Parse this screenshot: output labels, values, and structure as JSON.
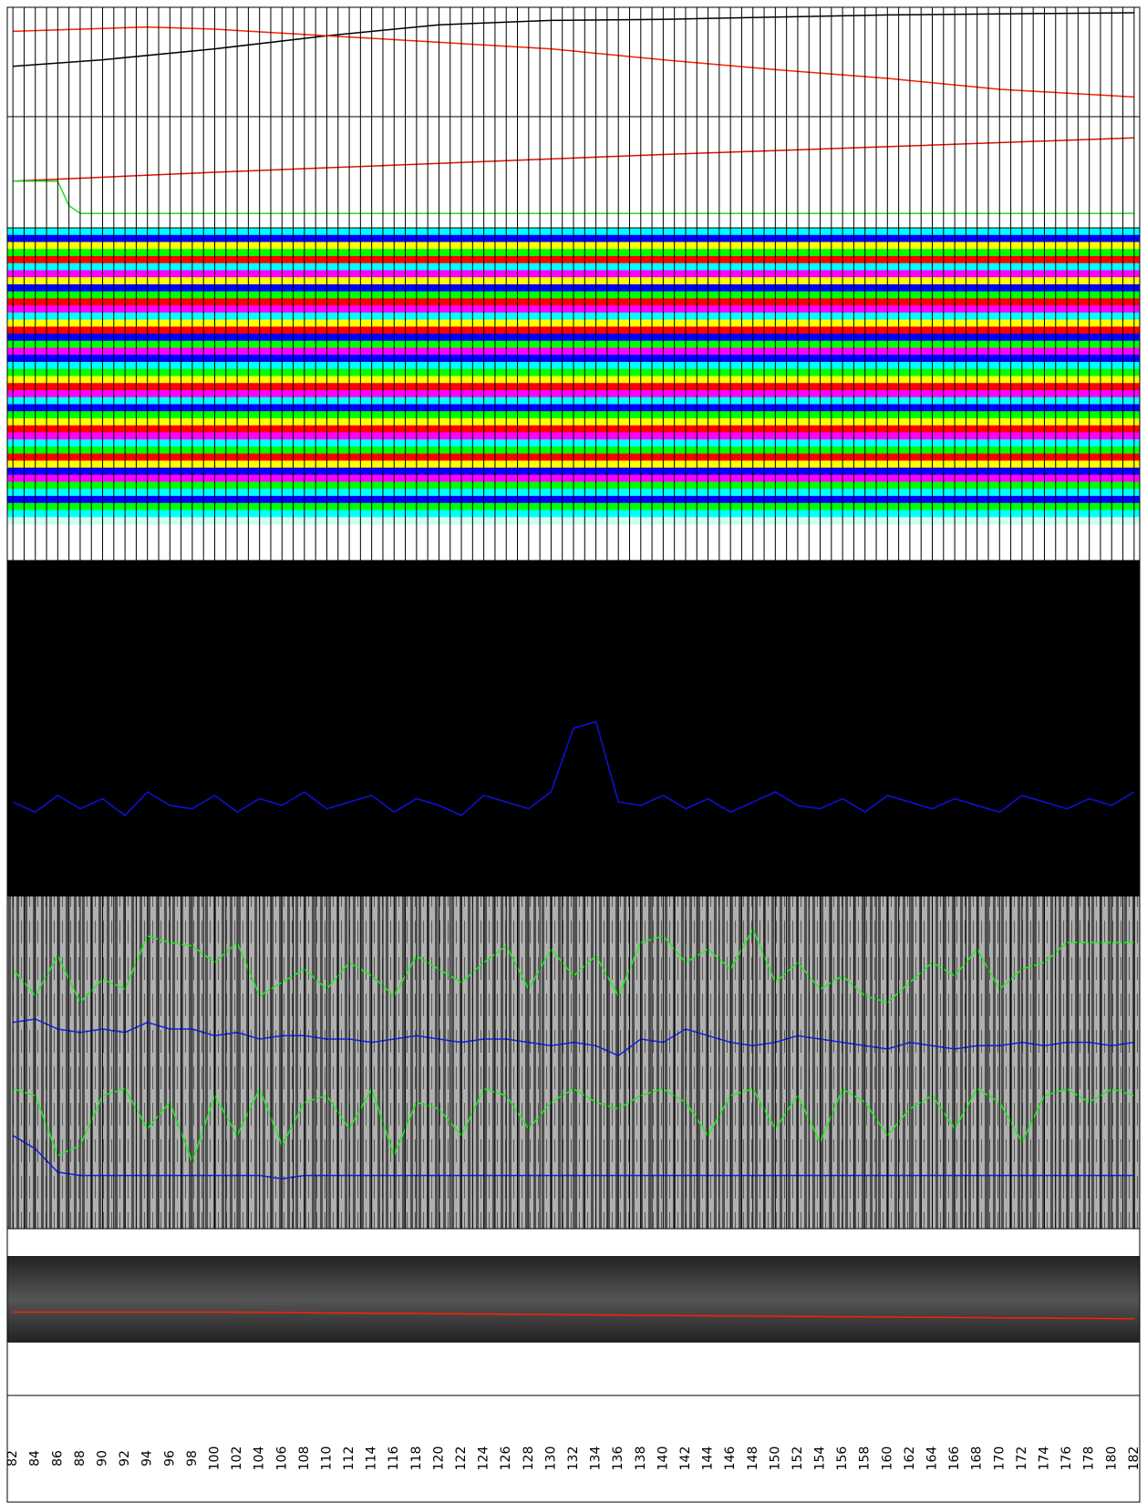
{
  "chart_data": {
    "type": "line",
    "xlim": [
      81.5,
      182.5
    ],
    "xticks": [
      82,
      84,
      86,
      88,
      90,
      92,
      94,
      96,
      98,
      100,
      102,
      104,
      106,
      108,
      110,
      112,
      114,
      116,
      118,
      120,
      122,
      124,
      126,
      128,
      130,
      132,
      134,
      136,
      138,
      140,
      142,
      144,
      146,
      148,
      150,
      152,
      154,
      156,
      158,
      160,
      162,
      164,
      166,
      168,
      170,
      172,
      174,
      176,
      178,
      180,
      182
    ],
    "xminor": [
      83,
      85,
      87,
      89,
      91,
      93,
      95,
      97,
      99,
      101,
      103,
      105,
      107,
      109,
      111,
      113,
      115,
      117,
      119,
      121,
      123,
      125,
      127,
      129,
      131,
      133,
      135,
      137,
      139,
      141,
      143,
      145,
      147,
      149,
      151,
      153,
      155,
      157,
      159,
      161,
      163,
      165,
      167,
      169,
      171,
      173,
      175,
      177,
      179,
      181
    ],
    "panels": [
      {
        "type": "line",
        "background": "#ffffff",
        "grid": true,
        "ylim": [
          0,
          100
        ],
        "series": [
          {
            "color": "#000000",
            "x": [
              82,
              90,
              100,
              110,
              120,
              130,
              140,
              150,
              160,
              170,
              182
            ],
            "values": [
              46,
              52,
              62,
              74,
              84,
              88,
              89,
              91,
              93,
              94,
              95
            ]
          },
          {
            "color": "#ff2000",
            "x": [
              82,
              88,
              94,
              100,
              110,
              120,
              130,
              140,
              150,
              160,
              170,
              182
            ],
            "values": [
              78,
              80,
              82,
              80,
              74,
              68,
              62,
              52,
              43,
              35,
              25,
              18
            ]
          }
        ]
      },
      {
        "type": "line",
        "background": "#ffffff",
        "grid": true,
        "ylim": [
          0,
          100
        ],
        "series": [
          {
            "color": "#e01000",
            "x": [
              82,
              100,
              120,
              140,
              160,
              182
            ],
            "values": [
              42,
              50,
              58,
              66,
              73,
              81
            ]
          },
          {
            "color": "#22dd22",
            "x": [
              82,
              86,
              87,
              88,
              182
            ],
            "values": [
              42,
              42,
              20,
              13,
              13
            ]
          }
        ]
      },
      {
        "type": "heatmap",
        "background": "#ffffff",
        "grid": true,
        "row_colors": [
          "#00ffff",
          "#0000ff",
          "#ffff00",
          "#00ff00",
          "#ff0000",
          "#00ffff",
          "#ff00ff",
          "#ffff00",
          "#0000ff",
          "#00ff00",
          "#ff0000",
          "#ff00ff",
          "#00ffff",
          "#ffff00",
          "#ff0000",
          "#0000ff",
          "#00ff00",
          "#ff00ff",
          "#0000ff",
          "#00ffff",
          "#00ff00",
          "#ffff00",
          "#ff0000",
          "#ff00ff",
          "#00ffff",
          "#0000ff",
          "#00ff00",
          "#ffff00",
          "#ff0000",
          "#ff00ff",
          "#00ffff",
          "#00ff00",
          "#ff0000",
          "#ffff00",
          "#0000ff",
          "#ff00ff",
          "#00ff00",
          "#00ffff",
          "#0000ff",
          "#00ff00",
          "#00ffff",
          "#ccffee"
        ]
      },
      {
        "type": "line",
        "background": "#000000",
        "grid": false,
        "ylim": [
          0,
          100
        ],
        "series": [
          {
            "color": "#1010e0",
            "values": [
              28,
              25,
              30,
              26,
              29,
              24,
              31,
              27,
              26,
              30,
              25,
              29,
              27,
              31,
              26,
              28,
              30,
              25,
              29,
              27,
              24,
              30,
              28,
              26,
              31,
              50,
              52,
              28,
              27,
              30,
              26,
              29,
              25,
              28,
              31,
              27,
              26,
              29,
              25,
              30,
              28,
              26,
              29,
              27,
              25,
              30,
              28,
              26,
              29,
              27,
              31
            ]
          }
        ]
      },
      {
        "type": "line",
        "background": "#b0b0b0",
        "grid": true,
        "ylim": [
          0,
          100
        ],
        "series": [
          {
            "color": "#22ee22",
            "values": [
              78,
              70,
              82,
              68,
              75,
              72,
              88,
              86,
              85,
              80,
              86,
              70,
              74,
              78,
              72,
              80,
              76,
              70,
              82,
              78,
              74,
              80,
              85,
              72,
              84,
              76,
              82,
              70,
              86,
              88,
              80,
              84,
              78,
              90,
              74,
              80,
              72,
              76,
              70,
              68,
              74,
              80,
              76,
              84,
              72,
              78,
              80,
              86,
              86,
              86,
              86
            ]
          },
          {
            "color": "#1020e0",
            "values": [
              62,
              63,
              60,
              59,
              60,
              59,
              62,
              60,
              60,
              58,
              59,
              57,
              58,
              58,
              57,
              57,
              56,
              57,
              58,
              57,
              56,
              57,
              57,
              56,
              55,
              56,
              55,
              52,
              57,
              56,
              60,
              58,
              56,
              55,
              56,
              58,
              57,
              56,
              55,
              54,
              56,
              55,
              54,
              55,
              55,
              56,
              55,
              56,
              56,
              55,
              56
            ]
          },
          {
            "color": "#22ee22",
            "values": [
              42,
              40,
              22,
              25,
              40,
              42,
              30,
              38,
              20,
              40,
              28,
              42,
              25,
              38,
              40,
              30,
              42,
              22,
              38,
              36,
              28,
              42,
              40,
              30,
              38,
              42,
              38,
              36,
              40,
              42,
              38,
              28,
              40,
              42,
              30,
              40,
              26,
              42,
              38,
              28,
              36,
              40,
              30,
              42,
              38,
              26,
              40,
              42,
              38,
              42,
              40
            ]
          },
          {
            "color": "#1020e0",
            "values": [
              28,
              24,
              17,
              16,
              16,
              16,
              16,
              16,
              16,
              16,
              16,
              16,
              15,
              16,
              16,
              16,
              16,
              16,
              16,
              16,
              16,
              16,
              16,
              16,
              16,
              16,
              16,
              16,
              16,
              16,
              16,
              16,
              16,
              16,
              16,
              16,
              16,
              16,
              16,
              16,
              16,
              16,
              16,
              16,
              16,
              16,
              16,
              16,
              16,
              16,
              16
            ]
          }
        ]
      },
      {
        "type": "line",
        "background": "#ffffff",
        "grid": false,
        "ylim": [
          0,
          100
        ],
        "series": [
          {
            "color": "#ff2000",
            "x": [
              82,
              100,
              120,
              140,
              160,
              182
            ],
            "values": [
              50,
              50,
              49,
              48,
              47,
              46
            ]
          }
        ]
      }
    ]
  }
}
